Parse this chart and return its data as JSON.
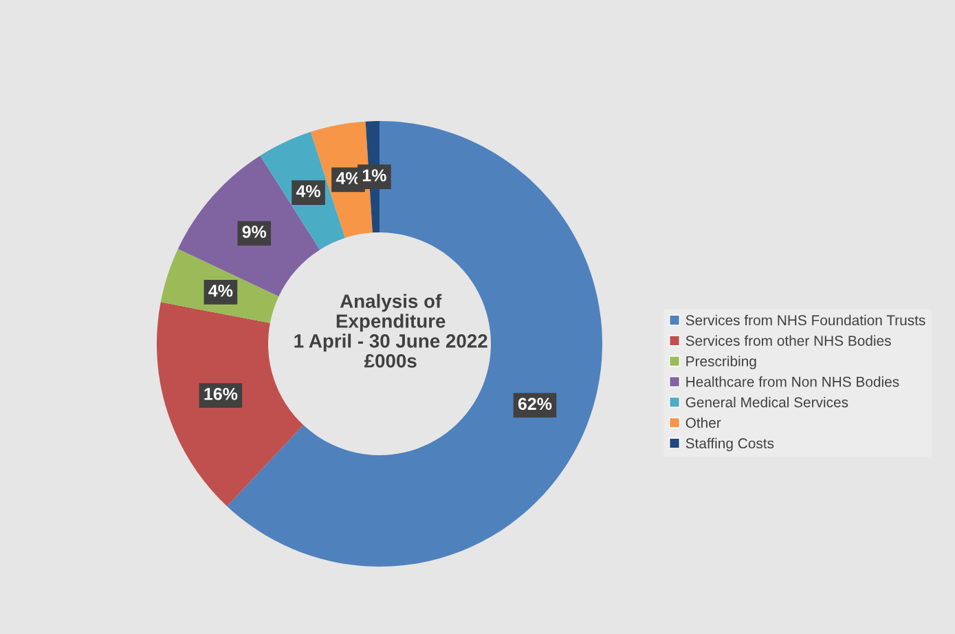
{
  "chart_data": {
    "type": "donut",
    "title": "Analysis of\nExpenditure\n1 April - 30 June 2022\n£000s",
    "categories": [
      "Services from NHS Foundation Trusts",
      "Services from other NHS Bodies",
      "Prescribing",
      "Healthcare from Non NHS Bodies",
      "General Medical Services",
      "Other",
      "Staffing Costs"
    ],
    "values": [
      62,
      16,
      4,
      9,
      4,
      4,
      1
    ],
    "colors": [
      "#4f81bd",
      "#c0504d",
      "#9bbb59",
      "#8064a2",
      "#4bacc6",
      "#f79646",
      "#1f497d"
    ],
    "value_labels": [
      "62%",
      "16%",
      "4%",
      "9%",
      "4%",
      "4%",
      "1%"
    ],
    "legend": "right"
  }
}
